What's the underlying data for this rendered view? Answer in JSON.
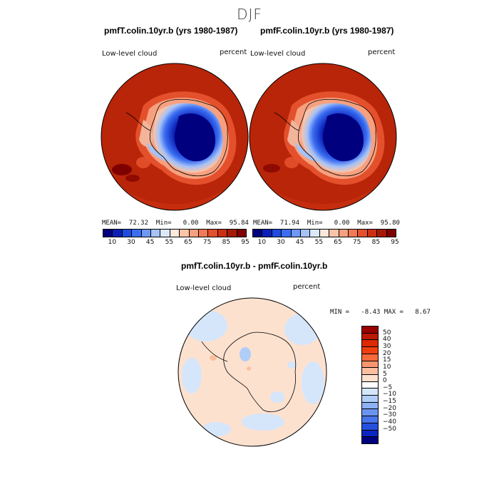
{
  "page_title": "DJF",
  "panels": [
    {
      "subtitle": "pmfT.colin.10yr.b (yrs 1980-1987)",
      "left_label": "Low-level cloud",
      "right_label": "percent",
      "stats": "MEAN=  72.32  Min=   0.00  Max=  95.84"
    },
    {
      "subtitle": "pmfF.colin.10yr.b (yrs 1980-1987)",
      "left_label": "Low-level cloud",
      "right_label": "percent",
      "stats": "MEAN=  71.94  Min=   0.00  Max=  95.80"
    }
  ],
  "abs_colorbar": {
    "colors": [
      "#00007f",
      "#0a1fb5",
      "#1f4be0",
      "#3a6df2",
      "#6f97f4",
      "#a6c2f6",
      "#dbe7fb",
      "#fde8dc",
      "#fbc4a8",
      "#f7a07f",
      "#f07a55",
      "#e4502c",
      "#cc2f12",
      "#a51a06",
      "#7f0000"
    ],
    "tick_labels": [
      "10",
      "30",
      "45",
      "55",
      "65",
      "75",
      "85",
      "95"
    ]
  },
  "diff_panel": {
    "subtitle": "pmfT.colin.10yr.b - pmfF.colin.10yr.b",
    "left_label": "Low-level cloud",
    "right_label": "percent",
    "stats": "MIN =   -8.43 MAX =   8.67"
  },
  "diff_colorbar": {
    "colors": [
      "#990000",
      "#bb1a00",
      "#dd2a00",
      "#f04010",
      "#f76a3a",
      "#f99670",
      "#fbbf9f",
      "#fde1cf",
      "#ffffff",
      "#d5e6fb",
      "#b0cdf8",
      "#8db2f4",
      "#6a94f0",
      "#4875ea",
      "#2550dc",
      "#0a25c0",
      "#00007f"
    ],
    "tick_labels": [
      "50",
      "40",
      "30",
      "20",
      "15",
      "10",
      "5",
      "0",
      "−5",
      "−10",
      "−15",
      "−20",
      "−30",
      "−40",
      "−50"
    ]
  }
}
